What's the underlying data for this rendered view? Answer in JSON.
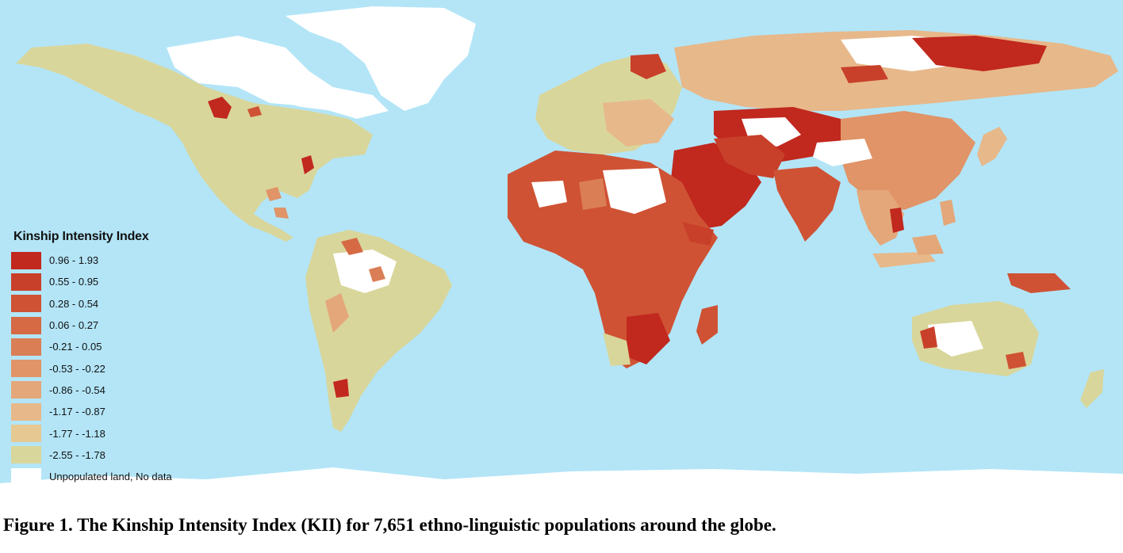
{
  "map": {
    "ocean_color": "#b3e5f7",
    "no_data_color": "#ffffff"
  },
  "legend": {
    "title": "Kinship Intensity Index",
    "items": [
      {
        "label": "0.96 - 1.93",
        "color": "#c1281e"
      },
      {
        "label": "0.55 - 0.95",
        "color": "#c8402a"
      },
      {
        "label": "0.28 - 0.54",
        "color": "#cf5234"
      },
      {
        "label": "0.06 - 0.27",
        "color": "#d56a45"
      },
      {
        "label": "-0.21 - 0.05",
        "color": "#da7e55"
      },
      {
        "label": "-0.53 - -0.22",
        "color": "#e09467"
      },
      {
        "label": "-0.86 - -0.54",
        "color": "#e4a77a"
      },
      {
        "label": "-1.17 - -0.87",
        "color": "#e7b88a"
      },
      {
        "label": "-1.77 - -1.18",
        "color": "#e5c892"
      },
      {
        "label": "-2.55 - -1.78",
        "color": "#d9d69b"
      },
      {
        "label": "Unpopulated land, No data",
        "color": "#ffffff"
      }
    ]
  },
  "caption": "Figure 1. The Kinship Intensity Index (KII) for 7,651 ethno-linguistic populations around the globe."
}
